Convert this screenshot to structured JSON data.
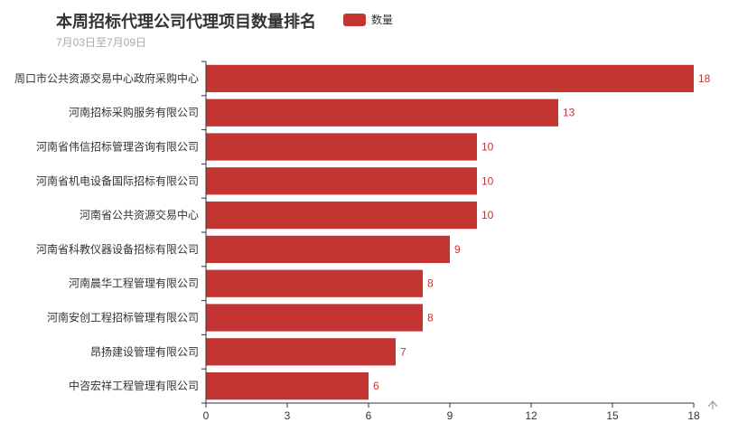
{
  "colors": {
    "bar": "#c23531",
    "axis": "#333333",
    "text": "#333333",
    "subtext": "#aaaaaa"
  },
  "icons": {
    "scroll_up": "up-arrow-icon"
  },
  "chart_data": {
    "type": "bar",
    "orientation": "horizontal",
    "title": "本周招标代理公司代理项目数量排名",
    "subtitle": "7月03日至7月09日",
    "legend": [
      "数量"
    ],
    "legend_position": "top-center",
    "categories": [
      "周口市公共资源交易中心政府采购中心",
      "河南招标采购服务有限公司",
      "河南省伟信招标管理咨询有限公司",
      "河南省机电设备国际招标有限公司",
      "河南省公共资源交易中心",
      "河南省科教仪器设备招标有限公司",
      "河南晨华工程管理有限公司",
      "河南安创工程招标管理有限公司",
      "昂扬建设管理有限公司",
      "中咨宏祥工程管理有限公司"
    ],
    "series": [
      {
        "name": "数量",
        "values": [
          18,
          13,
          10,
          10,
          10,
          9,
          8,
          8,
          7,
          6
        ]
      }
    ],
    "xlim": [
      0,
      18
    ],
    "xticks": [
      0,
      3,
      6,
      9,
      12,
      15,
      18
    ],
    "grid": false,
    "data_labels": true
  }
}
